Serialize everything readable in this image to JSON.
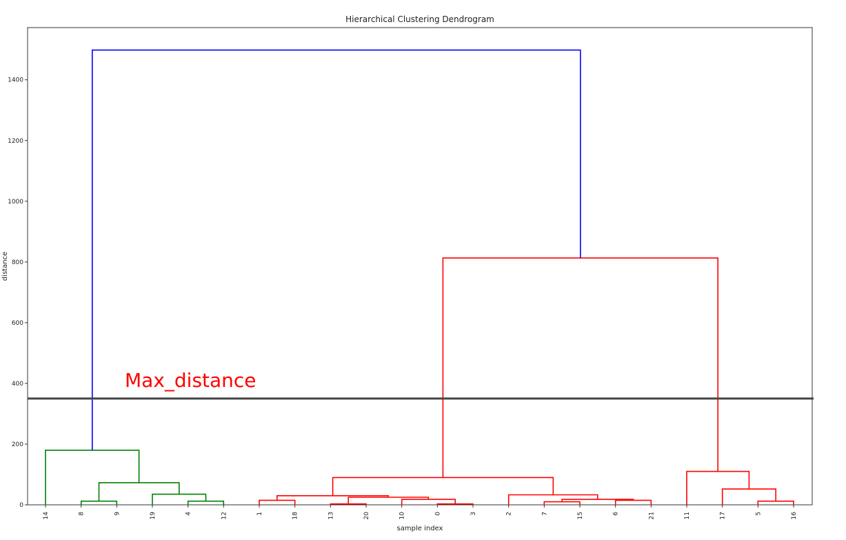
{
  "chart_data": {
    "type": "dendrogram",
    "title": "Hierarchical Clustering Dendrogram",
    "xlabel": "sample index",
    "ylabel": "distance",
    "ylim": [
      0,
      1500
    ],
    "yticks": [
      0,
      200,
      400,
      600,
      800,
      1000,
      1200,
      1400
    ],
    "leaves": [
      "14",
      "8",
      "9",
      "19",
      "4",
      "12",
      "1",
      "18",
      "13",
      "20",
      "10",
      "0",
      "3",
      "2",
      "7",
      "15",
      "6",
      "21",
      "11",
      "17",
      "5",
      "16"
    ],
    "colors": {
      "green": "#008000",
      "red": "#ff0000",
      "blue": "#0000ff",
      "threshold": "#444444",
      "annotation": "#ff0000"
    },
    "links": [
      {
        "x": [
          1.5,
          1.5,
          2.5,
          2.5
        ],
        "y": [
          0,
          12,
          12,
          0
        ],
        "color": "green"
      },
      {
        "x": [
          4.5,
          4.5,
          5.5,
          5.5
        ],
        "y": [
          0,
          12,
          12,
          0
        ],
        "color": "green"
      },
      {
        "x": [
          3.5,
          3.5,
          5.0,
          5.0
        ],
        "y": [
          0,
          35,
          35,
          12
        ],
        "color": "green"
      },
      {
        "x": [
          2.0,
          2.0,
          4.25,
          4.25
        ],
        "y": [
          12,
          73,
          73,
          35
        ],
        "color": "green"
      },
      {
        "x": [
          0.5,
          0.5,
          3.125,
          3.125
        ],
        "y": [
          0,
          180,
          180,
          73
        ],
        "color": "green"
      },
      {
        "x": [
          6.5,
          6.5,
          7.5,
          7.5
        ],
        "y": [
          0,
          15,
          15,
          0
        ],
        "color": "red"
      },
      {
        "x": [
          8.5,
          8.5,
          9.5,
          9.5
        ],
        "y": [
          0,
          3,
          3,
          0
        ],
        "color": "red"
      },
      {
        "x": [
          11.5,
          11.5,
          12.5,
          12.5
        ],
        "y": [
          0,
          3,
          3,
          0
        ],
        "color": "red"
      },
      {
        "x": [
          10.5,
          10.5,
          12.0,
          12.0
        ],
        "y": [
          0,
          18,
          18,
          3
        ],
        "color": "red"
      },
      {
        "x": [
          9.0,
          9.0,
          11.25,
          11.25
        ],
        "y": [
          3,
          25,
          25,
          18
        ],
        "color": "red"
      },
      {
        "x": [
          7.0,
          7.0,
          10.125,
          10.125
        ],
        "y": [
          15,
          30,
          30,
          25
        ],
        "color": "red"
      },
      {
        "x": [
          14.5,
          14.5,
          15.5,
          15.5
        ],
        "y": [
          0,
          10,
          10,
          0
        ],
        "color": "red"
      },
      {
        "x": [
          16.5,
          16.5,
          17.5,
          17.5
        ],
        "y": [
          0,
          15,
          15,
          0
        ],
        "color": "red"
      },
      {
        "x": [
          15.0,
          15.0,
          17.0,
          17.0
        ],
        "y": [
          10,
          18,
          18,
          15
        ],
        "color": "red"
      },
      {
        "x": [
          13.5,
          13.5,
          16.0,
          16.0
        ],
        "y": [
          0,
          33,
          33,
          18
        ],
        "color": "red"
      },
      {
        "x": [
          8.5625,
          8.5625,
          14.75,
          14.75
        ],
        "y": [
          30,
          90,
          90,
          33
        ],
        "color": "red"
      },
      {
        "x": [
          20.5,
          20.5,
          21.5,
          21.5
        ],
        "y": [
          0,
          12,
          12,
          0
        ],
        "color": "red"
      },
      {
        "x": [
          19.5,
          19.5,
          21.0,
          21.0
        ],
        "y": [
          0,
          52,
          52,
          12
        ],
        "color": "red"
      },
      {
        "x": [
          18.5,
          18.5,
          20.25,
          20.25
        ],
        "y": [
          0,
          110,
          110,
          52
        ],
        "color": "red"
      },
      {
        "x": [
          11.65625,
          11.65625,
          19.375,
          19.375
        ],
        "y": [
          90,
          813,
          813,
          110
        ],
        "color": "red"
      },
      {
        "x": [
          1.8125,
          1.8125,
          15.515625,
          15.515625
        ],
        "y": [
          180,
          1498,
          1498,
          813
        ],
        "color": "blue"
      }
    ],
    "threshold": {
      "y": 350,
      "label": "Max_distance"
    }
  }
}
